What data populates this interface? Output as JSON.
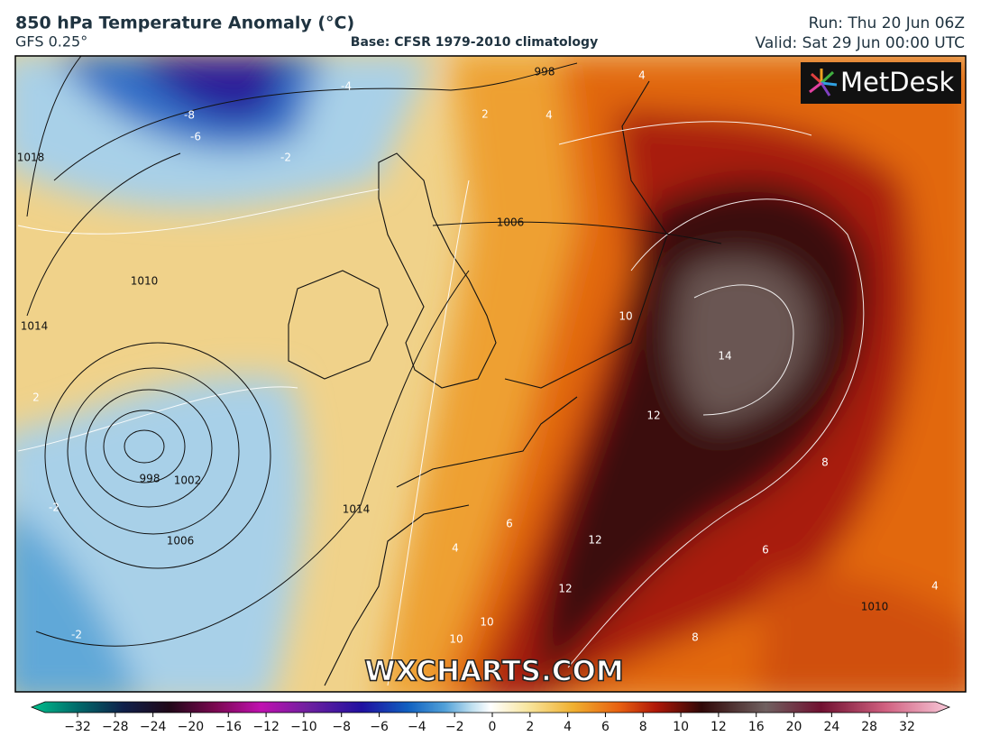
{
  "header": {
    "title": "850 hPa Temperature Anomaly (°C)",
    "model": "GFS 0.25°",
    "base": "Base: CFSR 1979-2010 climatology",
    "run": "Run: Thu 20 Jun 06Z",
    "valid": "Valid: Sat 29 Jun 00:00 UTC"
  },
  "map": {
    "logo": "MetDesk",
    "watermark": "WXCHARTS.COM",
    "pressure_labels": [
      "998",
      "1018",
      "1010",
      "1014",
      "1006",
      "998",
      "1002",
      "1006",
      "1014",
      "1010"
    ],
    "anomaly_labels": [
      "-8",
      "-6",
      "-4",
      "-2",
      "2",
      "4",
      "4",
      "2",
      "-2",
      "-2",
      "10",
      "14",
      "12",
      "8",
      "6",
      "4",
      "12",
      "12",
      "10",
      "10",
      "8",
      "6",
      "4"
    ]
  },
  "colorbar": {
    "ticks": [
      "−32",
      "−28",
      "−24",
      "−20",
      "−16",
      "−12",
      "−10",
      "−8",
      "−6",
      "−4",
      "−2",
      "0",
      "2",
      "4",
      "6",
      "8",
      "10",
      "12",
      "16",
      "20",
      "24",
      "28",
      "32"
    ]
  }
}
